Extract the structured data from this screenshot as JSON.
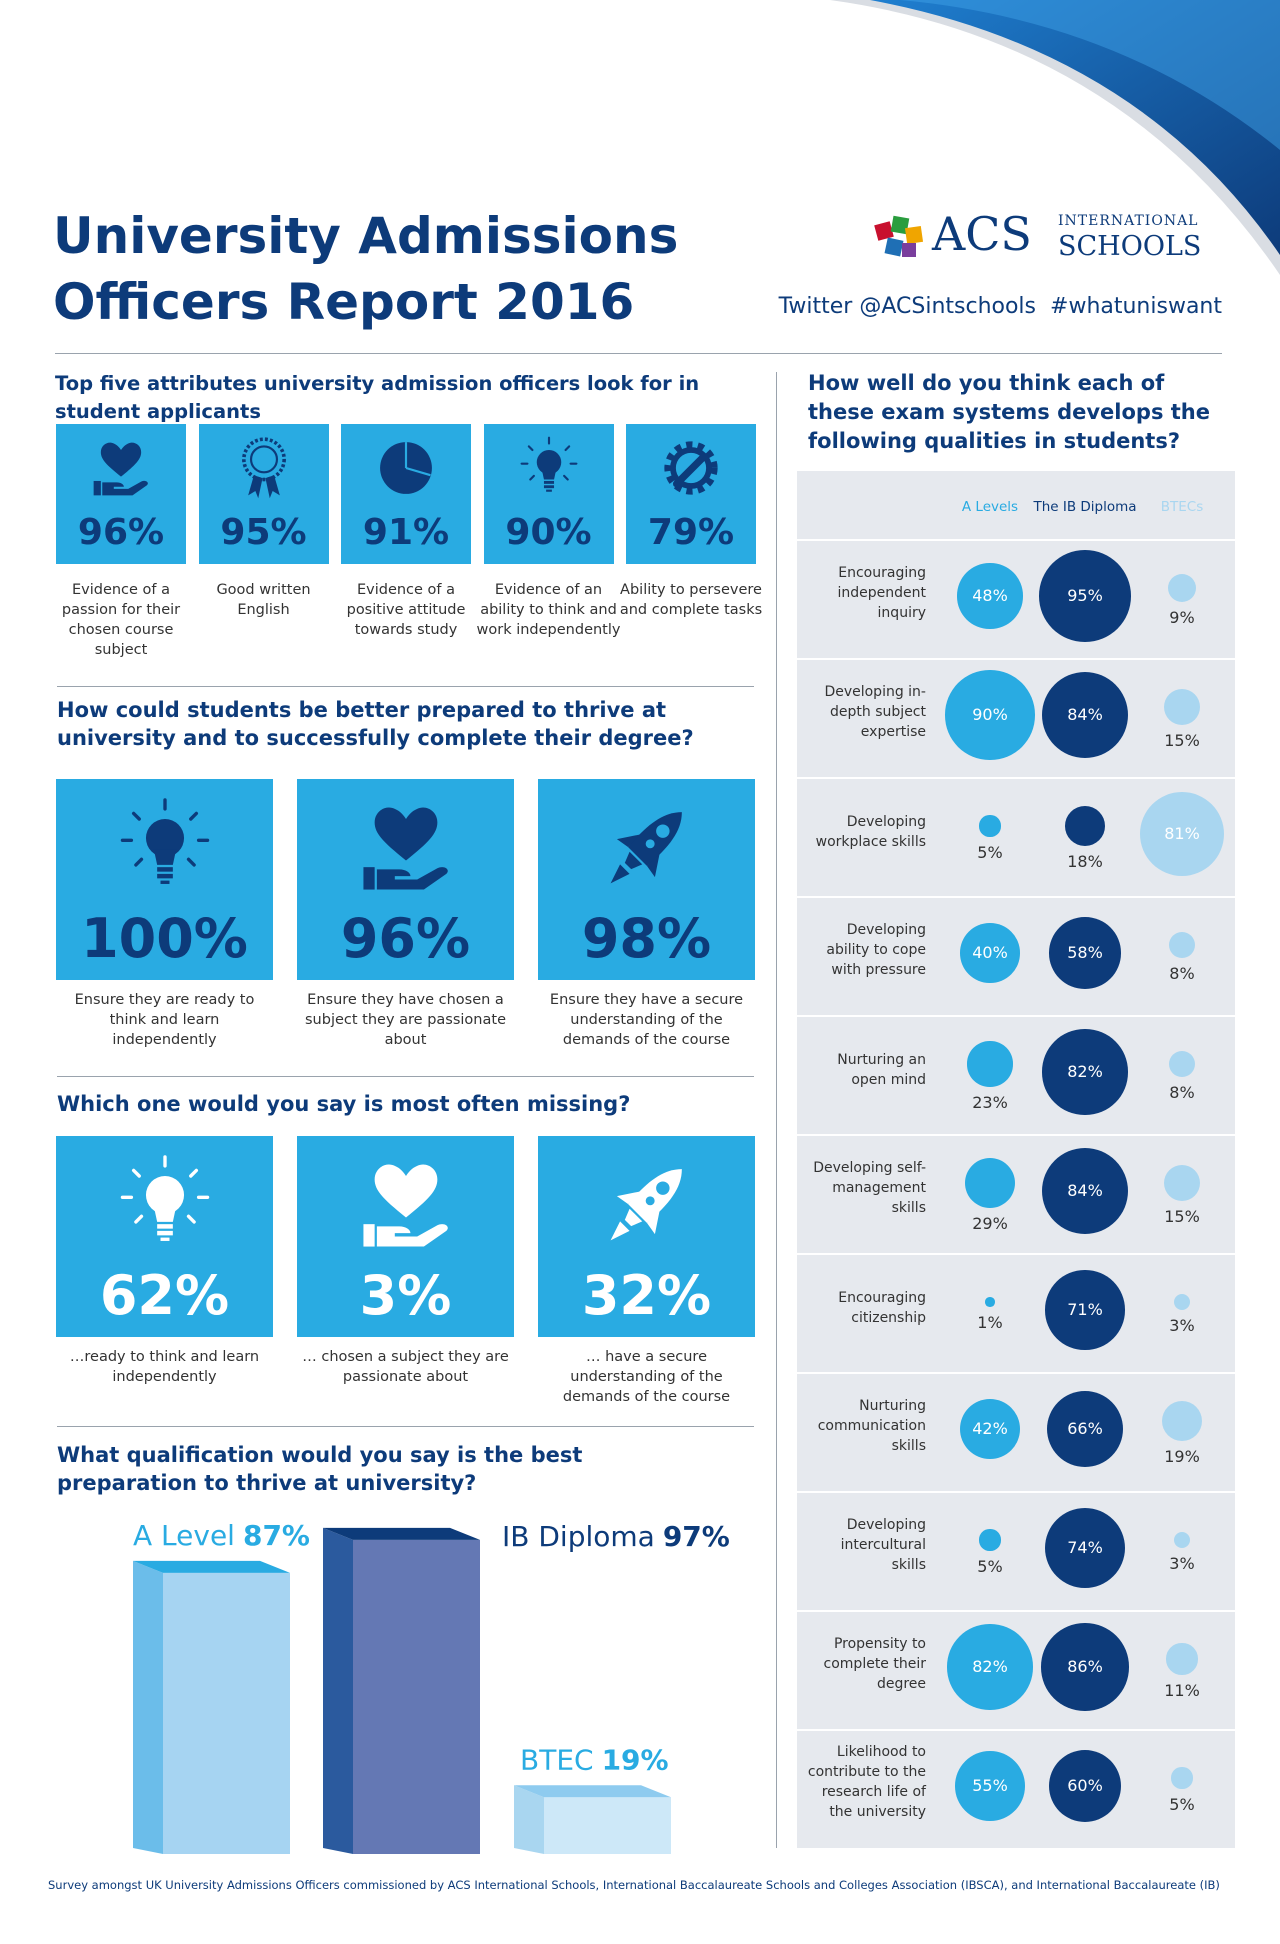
{
  "header": {
    "title": [
      "University Admissions",
      "Officers Report 2016"
    ],
    "logo": "ACS",
    "logo_top": "INTERNATIONAL",
    "logo_bottom": "SCHOOLS",
    "twitter": "Twitter @ACSintschools",
    "hashtag": "#whatuniswant"
  },
  "attributes": {
    "heading": "Top five attributes university admission officers look for in student applicants",
    "items": [
      {
        "label": "96%",
        "caption": "Evidence of a passion for their chosen course subject"
      },
      {
        "label": "95%",
        "caption": "Good written English"
      },
      {
        "label": "91%",
        "caption": "Evidence of a positive attitude towards study"
      },
      {
        "label": "90%",
        "caption": "Evidence of an ability to think and work independently"
      },
      {
        "label": "79%",
        "caption": "Ability to persevere and complete tasks"
      }
    ]
  },
  "preparation": {
    "heading": "How could students be better prepared to thrive at university and to successfully complete their degree?",
    "items": [
      {
        "label": "100%",
        "caption": "Ensure they are ready to think and learn independently"
      },
      {
        "label": "96%",
        "caption": "Ensure they have chosen a subject they are passionate about"
      },
      {
        "label": "98%",
        "caption": "Ensure they have a secure understanding of the demands of the course"
      }
    ]
  },
  "missing": {
    "heading": "Which one would you say is most often missing?",
    "items": [
      {
        "label": "62%",
        "caption": "…ready to think and learn independently"
      },
      {
        "label": "3%",
        "caption": "… chosen a subject they are passionate about"
      },
      {
        "label": "32%",
        "caption": "… have a secure understanding of the demands of the course"
      }
    ]
  },
  "qualification": {
    "heading": "What qualification would you say is the best preparation to thrive at university?",
    "bars": [
      {
        "name": "A Level",
        "value": 87,
        "value_label": "87%"
      },
      {
        "name": "IB Diploma",
        "value": 97,
        "value_label": "97%"
      },
      {
        "name": "BTEC",
        "value": 19,
        "value_label": "19%"
      }
    ]
  },
  "exam_systems": {
    "heading": "How well do you think each of these exam systems develops the following qualities in students?",
    "series": [
      {
        "name": "A Levels",
        "color": "#29abe2"
      },
      {
        "name": "The IB Diploma",
        "color": "#0d3b7a"
      },
      {
        "name": "BTECs",
        "color": "#a9d6f0"
      }
    ],
    "rows": [
      {
        "label": "Encouraging independent inquiry",
        "values": [
          48,
          95,
          9
        ],
        "value_labels": [
          "48%",
          "95%",
          "9%"
        ]
      },
      {
        "label": "Developing in-depth subject expertise",
        "values": [
          90,
          84,
          15
        ],
        "value_labels": [
          "90%",
          "84%",
          "15%"
        ]
      },
      {
        "label": "Developing workplace skills",
        "values": [
          5,
          18,
          81
        ],
        "value_labels": [
          "5%",
          "18%",
          "81%"
        ]
      },
      {
        "label": "Developing ability to cope with pressure",
        "values": [
          40,
          58,
          8
        ],
        "value_labels": [
          "40%",
          "58%",
          "8%"
        ]
      },
      {
        "label": "Nurturing an open mind",
        "values": [
          23,
          82,
          8
        ],
        "value_labels": [
          "23%",
          "82%",
          "8%"
        ]
      },
      {
        "label": "Developing self-management skills",
        "values": [
          29,
          84,
          15
        ],
        "value_labels": [
          "29%",
          "84%",
          "15%"
        ]
      },
      {
        "label": "Encouraging citizenship",
        "values": [
          1,
          71,
          3
        ],
        "value_labels": [
          "1%",
          "71%",
          "3%"
        ]
      },
      {
        "label": "Nurturing communication skills",
        "values": [
          42,
          66,
          19
        ],
        "value_labels": [
          "42%",
          "66%",
          "19%"
        ]
      },
      {
        "label": "Developing intercultural skills",
        "values": [
          5,
          74,
          3
        ],
        "value_labels": [
          "5%",
          "74%",
          "3%"
        ]
      },
      {
        "label": "Propensity to complete their degree",
        "values": [
          82,
          86,
          11
        ],
        "value_labels": [
          "82%",
          "86%",
          "11%"
        ]
      },
      {
        "label": "Likelihood to contribute to the research life of the university",
        "values": [
          55,
          60,
          5
        ],
        "value_labels": [
          "55%",
          "60%",
          "5%"
        ]
      }
    ]
  },
  "footer": "Survey amongst UK University Admissions Officers commissioned by ACS International Schools,  International Baccalaureate Schools and Colleges Association (IBSCA), and International Baccalaureate (IB)"
}
